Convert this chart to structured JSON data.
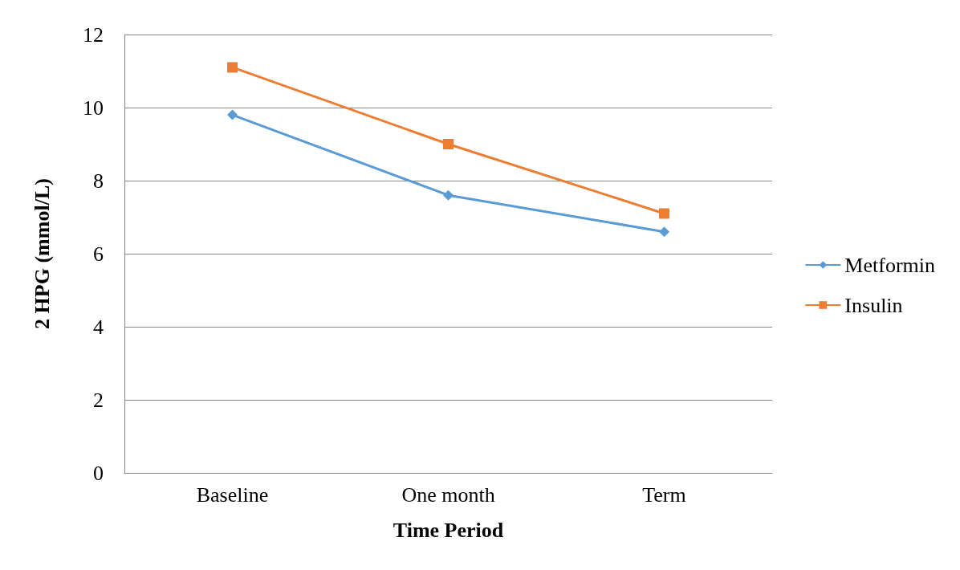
{
  "chart_data": {
    "type": "line",
    "xlabel": "Time Period",
    "ylabel": "2 HPG (mmol/L)",
    "categories": [
      "Baseline",
      "One month",
      "Term"
    ],
    "series": [
      {
        "name": "Metformin",
        "color": "#5b9bd5",
        "marker": "diamond",
        "values": [
          9.8,
          7.6,
          6.6
        ]
      },
      {
        "name": "Insulin",
        "color": "#ed7d31",
        "marker": "square",
        "values": [
          11.1,
          9.0,
          7.1
        ]
      }
    ],
    "ylim": [
      0,
      12
    ],
    "yticks": [
      0,
      2,
      4,
      6,
      8,
      10,
      12
    ],
    "grid": "y",
    "legend": "right"
  }
}
